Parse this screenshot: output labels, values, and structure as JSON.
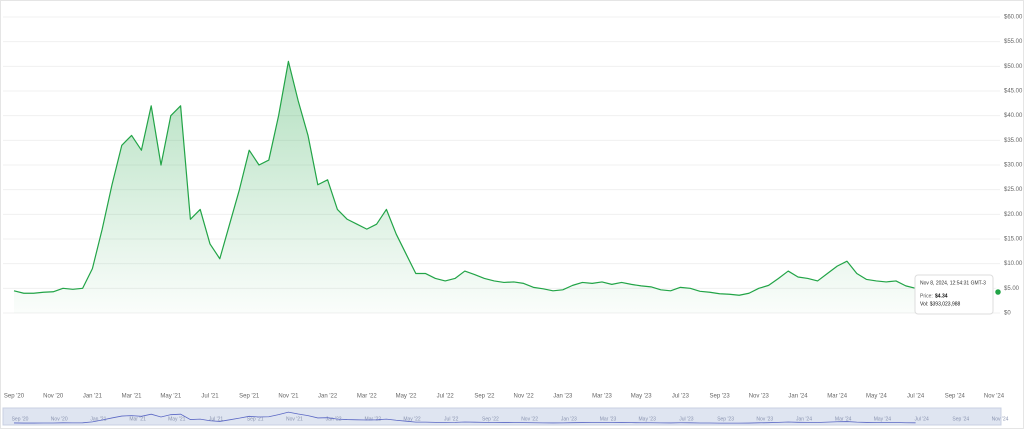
{
  "chart_data": {
    "type": "line",
    "categories": [
      "Sep '20",
      null,
      null,
      null,
      "Nov '20",
      null,
      null,
      null,
      "Jan '21",
      null,
      null,
      null,
      "Mar '21",
      null,
      null,
      null,
      "May '21",
      null,
      null,
      null,
      "Jul '21",
      null,
      null,
      null,
      "Sep '21",
      null,
      null,
      null,
      "Nov '21",
      null,
      null,
      null,
      "Jan '22",
      null,
      null,
      null,
      "Mar '22",
      null,
      null,
      null,
      "May '22",
      null,
      null,
      null,
      "Jul '22",
      null,
      null,
      null,
      "Sep '22",
      null,
      null,
      null,
      "Nov '22",
      null,
      null,
      null,
      "Jan '23",
      null,
      null,
      null,
      "Mar '23",
      null,
      null,
      null,
      "May '23",
      null,
      null,
      null,
      "Jul '23",
      null,
      null,
      null,
      "Sep '23",
      null,
      null,
      null,
      "Nov '23",
      null,
      null,
      null,
      "Jan '24",
      null,
      null,
      null,
      "Mar '24",
      null,
      null,
      null,
      "May '24",
      null,
      null,
      null,
      "Jul '24",
      null,
      null,
      null,
      "Sep '24",
      null,
      null,
      null,
      "Nov '24"
    ],
    "series": [
      {
        "name": "Price",
        "color": "#22a447",
        "values": [
          4.5,
          4.0,
          4.0,
          4.2,
          4.3,
          5.0,
          4.8,
          5.0,
          9.0,
          17,
          26,
          34,
          36,
          33,
          42,
          30,
          40,
          42,
          19,
          21,
          14,
          11,
          18,
          25,
          33,
          30,
          31,
          40,
          51,
          43,
          36,
          26,
          27,
          21,
          19,
          18,
          17,
          18,
          21,
          16,
          12,
          8,
          8,
          7,
          6.5,
          7,
          8.5,
          7.8,
          7,
          6.5,
          6.2,
          6.3,
          6.0,
          5.2,
          4.9,
          4.5,
          4.7,
          5.6,
          6.2,
          6.0,
          6.3,
          5.8,
          6.2,
          5.8,
          5.5,
          5.3,
          4.7,
          4.5,
          5.2,
          5.0,
          4.4,
          4.2,
          3.9,
          3.8,
          3.6,
          4.0,
          5.0,
          5.6,
          7.0,
          8.5,
          7.3,
          7.0,
          6.5,
          8.0,
          9.5,
          10.5,
          8.0,
          6.8,
          6.5,
          6.3,
          6.5,
          5.5,
          5.0,
          null,
          null,
          null,
          null,
          null,
          null,
          null,
          null
        ]
      }
    ],
    "ylim": [
      0,
      60
    ],
    "yticks": [
      {
        "value": 0,
        "label": "$0"
      },
      {
        "value": 5,
        "label": "$5.00"
      },
      {
        "value": 10,
        "label": "$10.00"
      },
      {
        "value": 15,
        "label": "$15.00"
      },
      {
        "value": 20,
        "label": "$20.00"
      },
      {
        "value": 25,
        "label": "$25.00"
      },
      {
        "value": 30,
        "label": "$30.00"
      },
      {
        "value": 35,
        "label": "$35.00"
      },
      {
        "value": 40,
        "label": "$40.00"
      },
      {
        "value": 45,
        "label": "$45.00"
      },
      {
        "value": 50,
        "label": "$50.00"
      },
      {
        "value": 55,
        "label": "$55.00"
      },
      {
        "value": 60,
        "label": "$60.00"
      }
    ],
    "grid": true,
    "tooltip": {
      "date": "Nov 8, 2024, 12:54:31 GMT-3",
      "price_label": "Price:",
      "price": "$4.34",
      "volume": "Vol: $393,023,988"
    }
  }
}
